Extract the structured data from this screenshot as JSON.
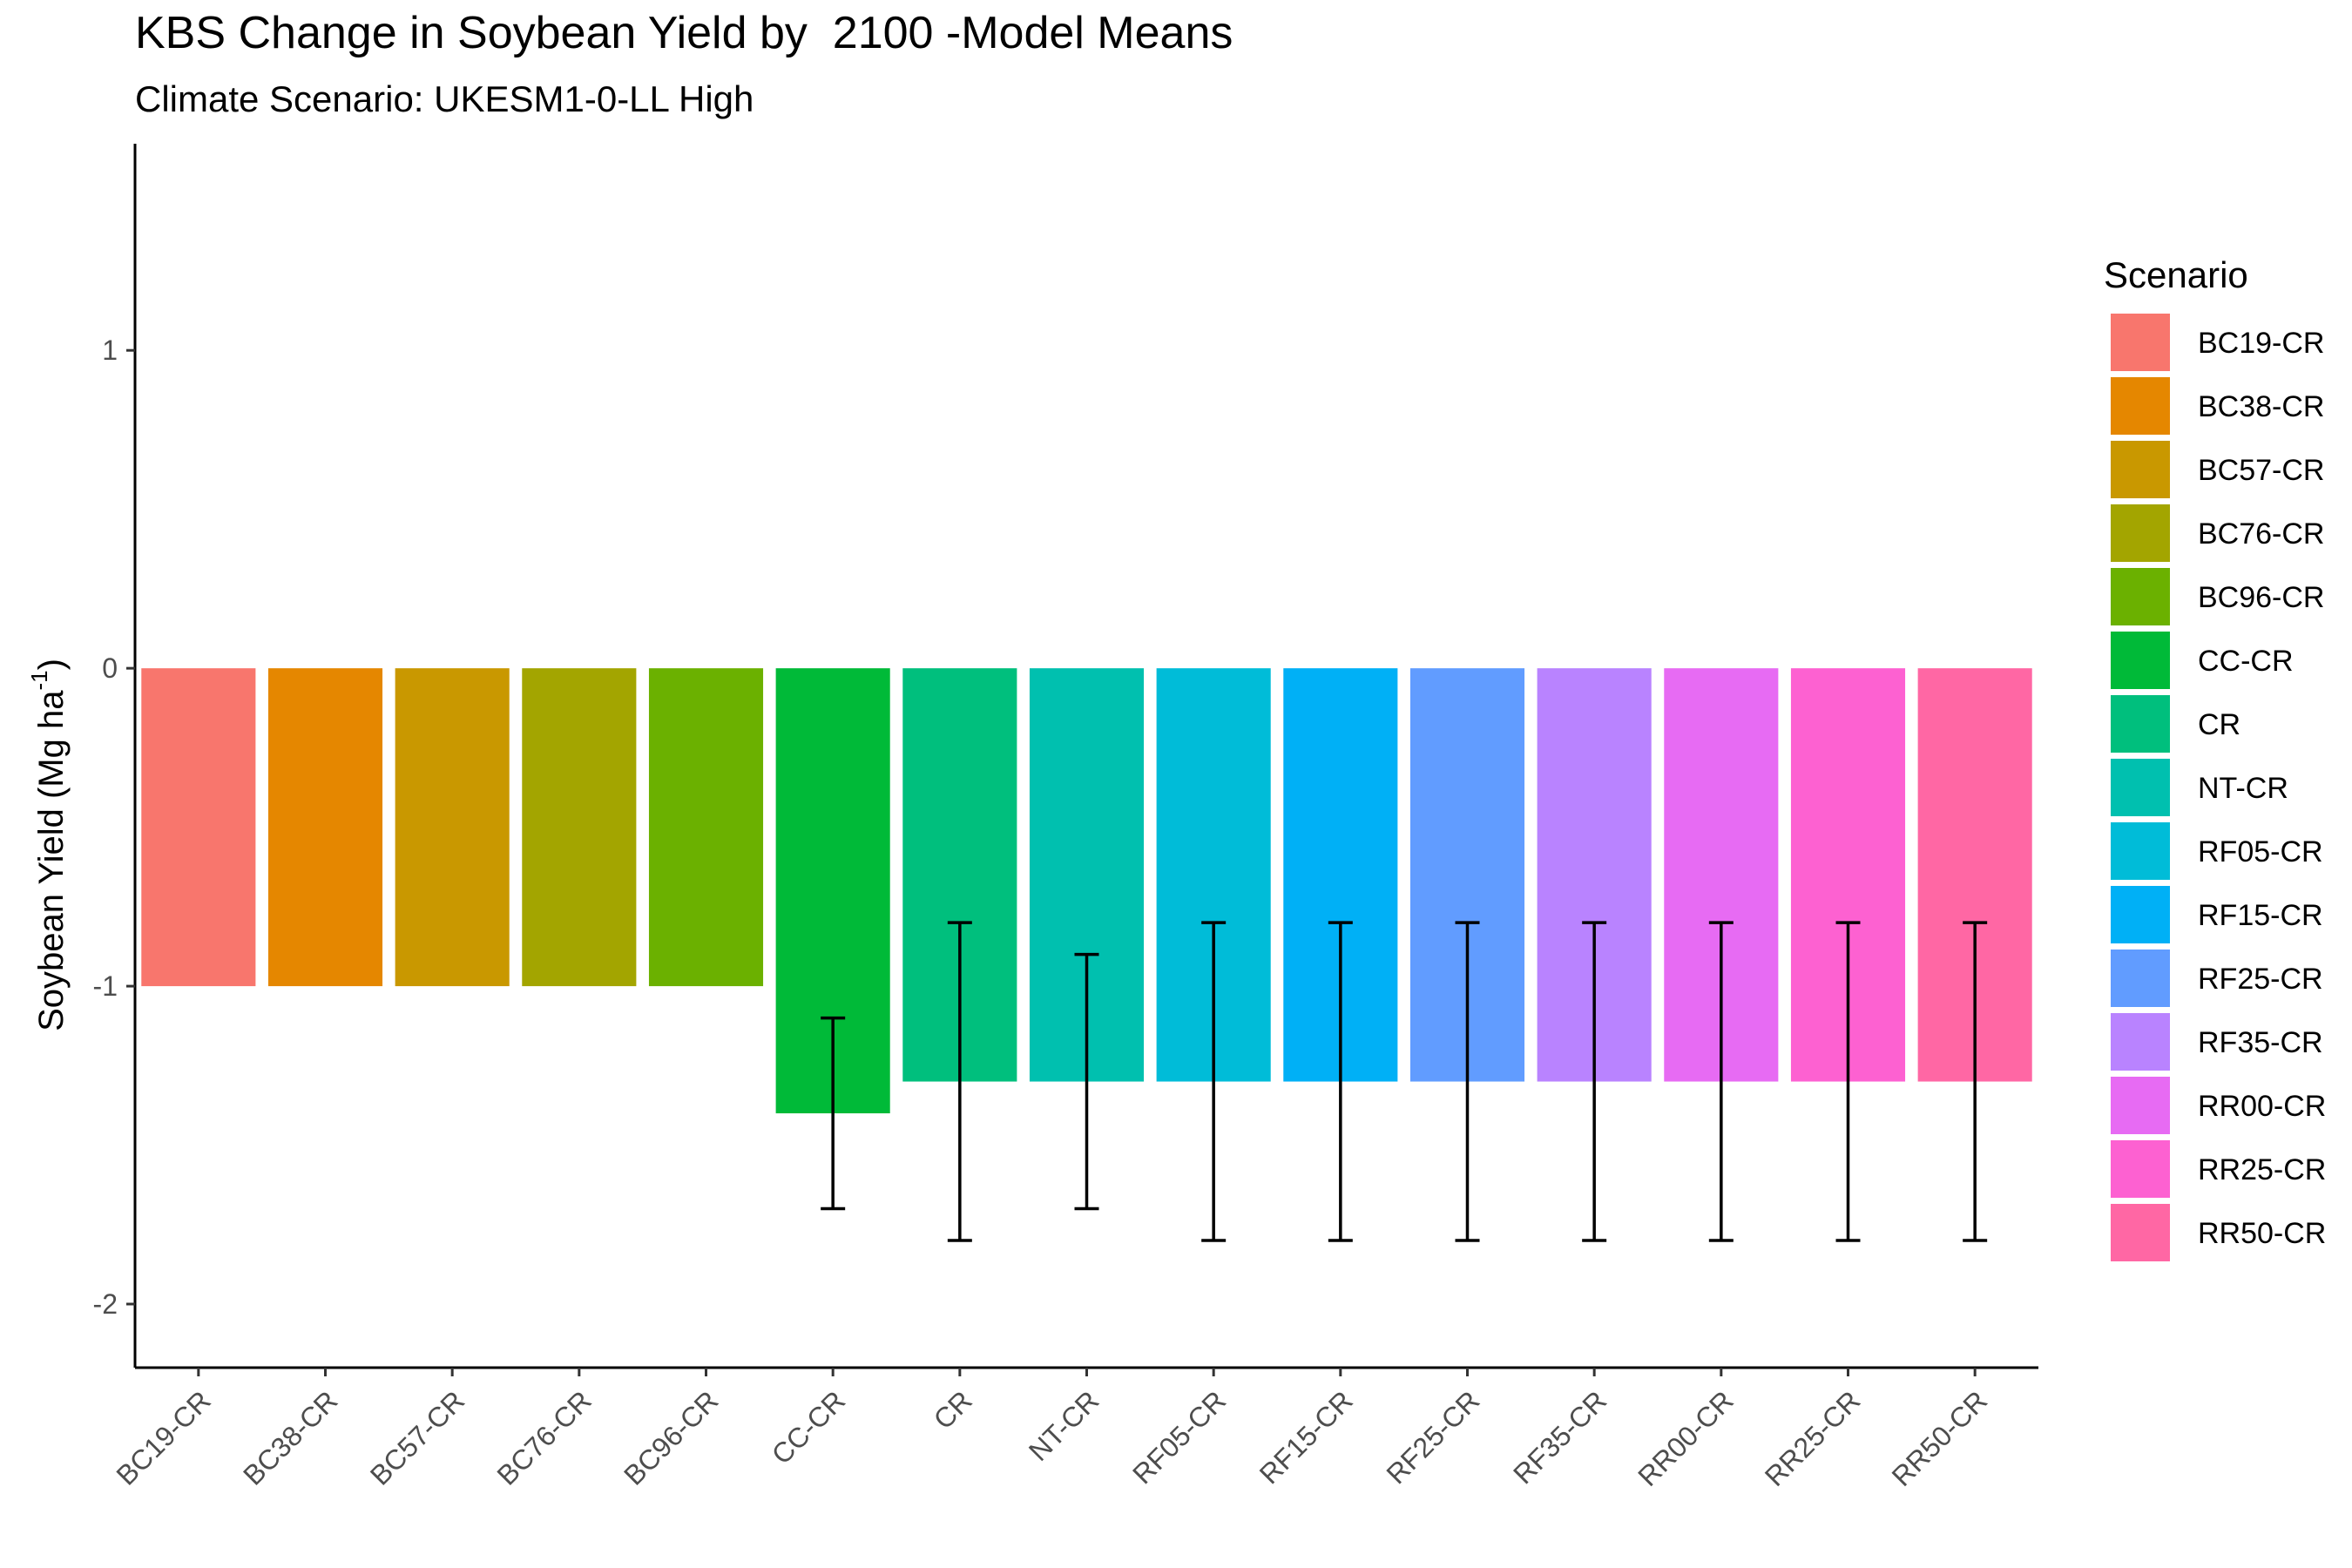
{
  "chart_data": {
    "type": "bar",
    "title": "KBS Change in Soybean Yield by  2100 -Model Means",
    "subtitle": "Climate Scenario: UKESM1-0-LL High",
    "ylabel_main": "Soybean Yield (Mg ha",
    "ylabel_sup": "-1",
    "ylabel_close": ")",
    "xlabel": "",
    "ylim": [
      -2.2,
      1.65
    ],
    "yticks": [
      1,
      0,
      -1,
      -2
    ],
    "grid": false,
    "legend": {
      "title": "Scenario",
      "placement": "right"
    },
    "categories": [
      "BC19-CR",
      "BC38-CR",
      "BC57-CR",
      "BC76-CR",
      "BC96-CR",
      "CC-CR",
      "CR",
      "NT-CR",
      "RF05-CR",
      "RF15-CR",
      "RF25-CR",
      "RF35-CR",
      "RR00-CR",
      "RR25-CR",
      "RR50-CR"
    ],
    "values": [
      -1,
      -1,
      -1,
      -1,
      -1,
      -1.4,
      -1.3,
      -1.3,
      -1.3,
      -1.3,
      -1.3,
      -1.3,
      -1.3,
      -1.3,
      -1.3
    ],
    "error_low": [
      null,
      null,
      null,
      null,
      null,
      -1.7,
      -1.8,
      -1.7,
      -1.8,
      -1.8,
      -1.8,
      -1.8,
      -1.8,
      -1.8,
      -1.8
    ],
    "error_high": [
      null,
      null,
      null,
      null,
      null,
      -1.1,
      -0.8,
      -0.9,
      -0.8,
      -0.8,
      -0.8,
      -0.8,
      -0.8,
      -0.8,
      -0.8
    ],
    "colors": [
      "#F8766D",
      "#E58700",
      "#C99800",
      "#A3A500",
      "#6BB100",
      "#00BA38",
      "#00BF7D",
      "#00C0AF",
      "#00BCD8",
      "#00B0F6",
      "#619CFF",
      "#B983FF",
      "#E76BF3",
      "#FD61D1",
      "#FF67A4"
    ]
  }
}
